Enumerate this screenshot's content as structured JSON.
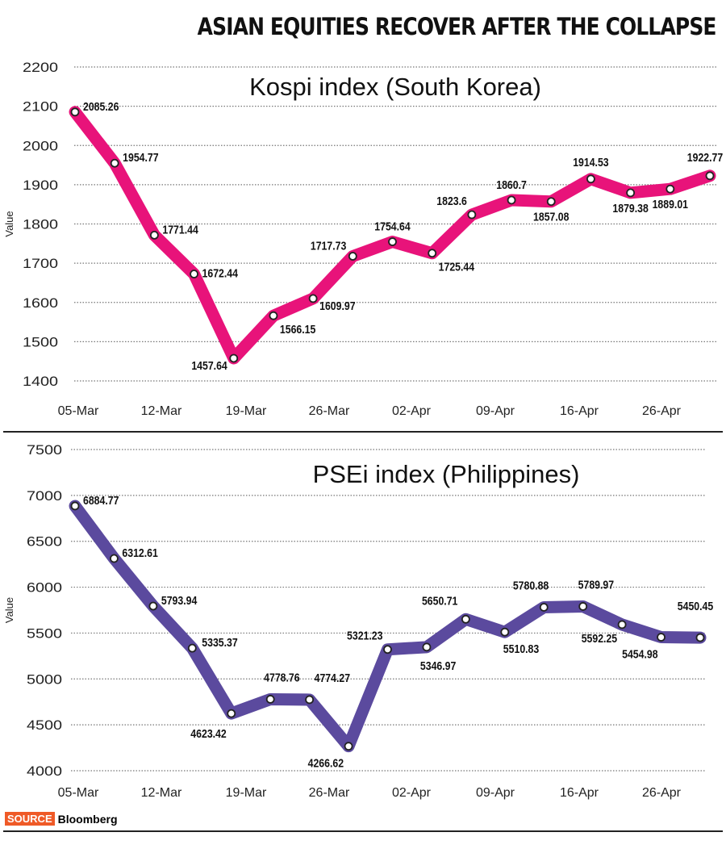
{
  "headline": "ASIAN EQUITIES RECOVER AFTER THE COLLAPSE",
  "source": {
    "label": "SOURCE",
    "name": "Bloomberg"
  },
  "chart_data": [
    {
      "type": "line",
      "title": "Kospi index (South Korea)",
      "ylabel": "Value",
      "xlabel": "",
      "ylim": [
        1400,
        2200
      ],
      "yticks": [
        1400,
        1500,
        1600,
        1700,
        1800,
        1900,
        2000,
        2100,
        2200
      ],
      "xtick_labels": [
        "05-Mar",
        "12-Mar",
        "19-Mar",
        "26-Mar",
        "02-Apr",
        "09-Apr",
        "16-Apr",
        "26-Apr"
      ],
      "grid": true,
      "color": "#e8137a",
      "values": [
        2085.26,
        1954.77,
        1771.44,
        1672.44,
        1457.64,
        1566.15,
        1609.97,
        1717.73,
        1754.64,
        1725.44,
        1823.6,
        1860.7,
        1857.08,
        1914.53,
        1879.38,
        1889.01,
        1922.77
      ],
      "labels": [
        "2085.26",
        "1954.77",
        "1771.44",
        "1672.44",
        "1457.64",
        "1566.15",
        "1609.97",
        "1717.73",
        "1754.64",
        "1725.44",
        "1823.6",
        "1860.7",
        "1857.08",
        "1914.53",
        "1879.38",
        "1889.01",
        "1922.77"
      ]
    },
    {
      "type": "line",
      "title": "PSEi index (Philippines)",
      "ylabel": "Value",
      "xlabel": "",
      "ylim": [
        4000,
        7500
      ],
      "yticks": [
        4000,
        4500,
        5000,
        5500,
        6000,
        6500,
        7000,
        7500
      ],
      "xtick_labels": [
        "05-Mar",
        "12-Mar",
        "19-Mar",
        "26-Mar",
        "02-Apr",
        "09-Apr",
        "16-Apr",
        "26-Apr"
      ],
      "grid": true,
      "color": "#5b4a9e",
      "values": [
        6884.77,
        6312.61,
        5793.94,
        5335.37,
        4623.42,
        4778.76,
        4774.27,
        4266.62,
        5321.23,
        5346.97,
        5650.71,
        5510.83,
        5780.88,
        5789.97,
        5592.25,
        5454.98,
        5450.45
      ],
      "labels": [
        "6884.77",
        "6312.61",
        "5793.94",
        "5335.37",
        "4623.42",
        "4778.76",
        "4774.27",
        "4266.62",
        "5321.23",
        "5346.97",
        "5650.71",
        "5510.83",
        "5780.88",
        "5789.97",
        "5592.25",
        "5454.98",
        "5450.45"
      ]
    }
  ]
}
